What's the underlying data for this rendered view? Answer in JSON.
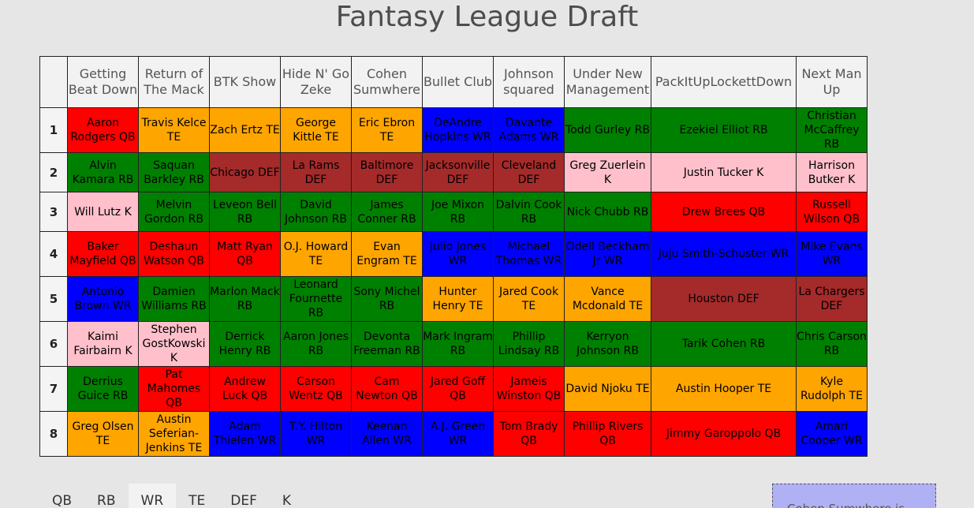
{
  "title": "Fantasy League Draft",
  "teams": [
    "Getting Beat Down",
    "Return of The Mack",
    "BTK Show",
    "Hide N' Go Zeke",
    "Cohen Sumwhere",
    "Bullet Club",
    "Johnson squared",
    "Under New Management",
    "PackItUpLockettDown",
    "Next Man Up"
  ],
  "rounds": [
    {
      "label": "1",
      "picks": [
        {
          "text": "Aaron Rodgers QB",
          "pos": "QB"
        },
        {
          "text": "Travis Kelce TE",
          "pos": "TE"
        },
        {
          "text": "Zach Ertz TE",
          "pos": "TE"
        },
        {
          "text": "George Kittle TE",
          "pos": "TE"
        },
        {
          "text": "Eric Ebron TE",
          "pos": "TE"
        },
        {
          "text": "DeAndre Hopkins WR",
          "pos": "WR"
        },
        {
          "text": "Davante Adams WR",
          "pos": "WR"
        },
        {
          "text": "Todd Gurley RB",
          "pos": "RB"
        },
        {
          "text": "Ezekiel Elliot RB",
          "pos": "RB"
        },
        {
          "text": "Christian McCaffrey RB",
          "pos": "RB"
        }
      ]
    },
    {
      "label": "2",
      "picks": [
        {
          "text": "Alvin Kamara RB",
          "pos": "RB"
        },
        {
          "text": "Saquan Barkley RB",
          "pos": "RB"
        },
        {
          "text": "Chicago DEF",
          "pos": "DEF"
        },
        {
          "text": "La Rams DEF",
          "pos": "DEF"
        },
        {
          "text": "Baltimore DEF",
          "pos": "DEF"
        },
        {
          "text": "Jacksonville DEF",
          "pos": "DEF"
        },
        {
          "text": "Cleveland DEF",
          "pos": "DEF"
        },
        {
          "text": "Greg Zuerlein K",
          "pos": "K"
        },
        {
          "text": "Justin Tucker K",
          "pos": "K"
        },
        {
          "text": "Harrison Butker K",
          "pos": "K"
        }
      ]
    },
    {
      "label": "3",
      "picks": [
        {
          "text": "Will Lutz K",
          "pos": "K"
        },
        {
          "text": "Melvin Gordon RB",
          "pos": "RB"
        },
        {
          "text": "Leveon Bell RB",
          "pos": "RB"
        },
        {
          "text": "David Johnson RB",
          "pos": "RB"
        },
        {
          "text": "James Conner RB",
          "pos": "RB"
        },
        {
          "text": "Joe Mixon RB",
          "pos": "RB"
        },
        {
          "text": "Dalvin Cook RB",
          "pos": "RB"
        },
        {
          "text": "Nick Chubb RB",
          "pos": "RB"
        },
        {
          "text": "Drew Brees QB",
          "pos": "QB"
        },
        {
          "text": "Russell Wilson QB",
          "pos": "QB"
        }
      ]
    },
    {
      "label": "4",
      "picks": [
        {
          "text": "Baker Mayfield QB",
          "pos": "QB"
        },
        {
          "text": "Deshaun Watson QB",
          "pos": "QB"
        },
        {
          "text": "Matt Ryan QB",
          "pos": "QB"
        },
        {
          "text": "O.J. Howard TE",
          "pos": "TE"
        },
        {
          "text": "Evan Engram TE",
          "pos": "TE"
        },
        {
          "text": "Julio Jones WR",
          "pos": "WR"
        },
        {
          "text": "Michael Thomas WR",
          "pos": "WR"
        },
        {
          "text": "Odell Beckham Jr WR",
          "pos": "WR"
        },
        {
          "text": "Juju Smith-Schuster WR",
          "pos": "WR"
        },
        {
          "text": "Mike Evans WR",
          "pos": "WR"
        }
      ]
    },
    {
      "label": "5",
      "picks": [
        {
          "text": "Antonio Brown WR",
          "pos": "WR"
        },
        {
          "text": "Damien Williams RB",
          "pos": "RB"
        },
        {
          "text": "Marlon Mack RB",
          "pos": "RB"
        },
        {
          "text": "Leonard Fournette RB",
          "pos": "RB"
        },
        {
          "text": "Sony Michel RB",
          "pos": "RB"
        },
        {
          "text": "Hunter Henry TE",
          "pos": "TE"
        },
        {
          "text": "Jared Cook TE",
          "pos": "TE"
        },
        {
          "text": "Vance Mcdonald TE",
          "pos": "TE"
        },
        {
          "text": "Houston DEF",
          "pos": "DEF"
        },
        {
          "text": "La Chargers DEF",
          "pos": "DEF"
        }
      ]
    },
    {
      "label": "6",
      "picks": [
        {
          "text": "Kaimi Fairbairn K",
          "pos": "K"
        },
        {
          "text": "Stephen GostKowski K",
          "pos": "K"
        },
        {
          "text": "Derrick Henry RB",
          "pos": "RB"
        },
        {
          "text": "Aaron Jones RB",
          "pos": "RB"
        },
        {
          "text": "Devonta Freeman RB",
          "pos": "RB"
        },
        {
          "text": "Mark Ingram RB",
          "pos": "RB"
        },
        {
          "text": "Phillip Lindsay RB",
          "pos": "RB"
        },
        {
          "text": "Kerryon Johnson RB",
          "pos": "RB"
        },
        {
          "text": "Tarik Cohen RB",
          "pos": "RB"
        },
        {
          "text": "Chris Carson RB",
          "pos": "RB"
        }
      ]
    },
    {
      "label": "7",
      "picks": [
        {
          "text": "Derrius Guice RB",
          "pos": "RB"
        },
        {
          "text": "Pat Mahomes QB",
          "pos": "QB"
        },
        {
          "text": "Andrew Luck QB",
          "pos": "QB"
        },
        {
          "text": "Carson Wentz QB",
          "pos": "QB"
        },
        {
          "text": "Cam Newton QB",
          "pos": "QB"
        },
        {
          "text": "Jared Goff QB",
          "pos": "QB"
        },
        {
          "text": "Jameis Winston QB",
          "pos": "QB"
        },
        {
          "text": "David Njoku TE",
          "pos": "TE"
        },
        {
          "text": "Austin Hooper TE",
          "pos": "TE"
        },
        {
          "text": "Kyle Rudolph TE",
          "pos": "TE"
        }
      ]
    },
    {
      "label": "8",
      "picks": [
        {
          "text": "Greg Olsen TE",
          "pos": "TE"
        },
        {
          "text": "Austin Seferian-Jenkins TE",
          "pos": "TE"
        },
        {
          "text": "Adam Thielen WR",
          "pos": "WR"
        },
        {
          "text": "T.Y. Hilton WR",
          "pos": "WR"
        },
        {
          "text": "Keenan Allen WR",
          "pos": "WR"
        },
        {
          "text": "A.J. Green WR",
          "pos": "WR"
        },
        {
          "text": "Tom Brady QB",
          "pos": "QB"
        },
        {
          "text": "Phillip Rivers QB",
          "pos": "QB"
        },
        {
          "text": "Jimmy Garoppolo QB",
          "pos": "QB"
        },
        {
          "text": "Amari Cooper WR",
          "pos": "WR"
        }
      ]
    }
  ],
  "position_colors": {
    "QB": "#ff0000",
    "RB": "#008000",
    "WR": "#0000ff",
    "TE": "#ffa500",
    "DEF": "#a52a2a",
    "K": "#ffc0cb"
  },
  "filter_tabs": [
    "QB",
    "RB",
    "WR",
    "TE",
    "DEF",
    "K"
  ],
  "active_tab": "WR",
  "turn_box_text": "Cohen Sumwhere is"
}
